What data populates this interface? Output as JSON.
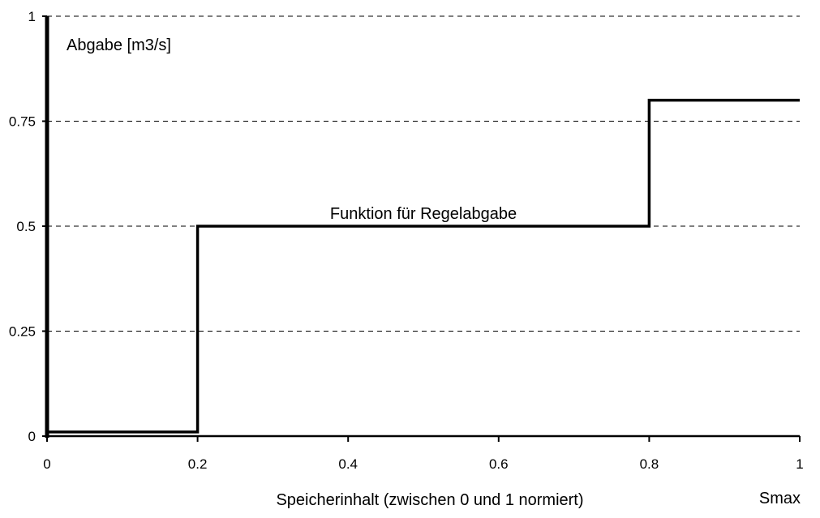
{
  "chart_data": {
    "type": "line",
    "step": true,
    "title": "",
    "ylabel": "Abgabe [m3/s]",
    "xlabel": "Speicherinhalt (zwischen 0 und 1 normiert)",
    "x_end_label": "Smax",
    "annotation": "Funktion für Regelabgabe",
    "xlim": [
      0,
      1
    ],
    "ylim": [
      0,
      1
    ],
    "x_ticks": [
      0,
      0.2,
      0.4,
      0.6,
      0.8,
      1
    ],
    "x_tick_labels": [
      "0",
      "0.2",
      "0.4",
      "0.6",
      "0.8",
      "1"
    ],
    "y_ticks": [
      0,
      0.25,
      0.5,
      0.75,
      1
    ],
    "y_tick_labels": [
      "0",
      "0.25",
      "0.5",
      "0.75",
      "1"
    ],
    "grid": "horizontal dashed",
    "series": [
      {
        "x": [
          0,
          0.2,
          0.2,
          0.8,
          0.8,
          1
        ],
        "y": [
          0.01,
          0.01,
          0.5,
          0.5,
          0.8,
          0.8
        ]
      }
    ]
  }
}
